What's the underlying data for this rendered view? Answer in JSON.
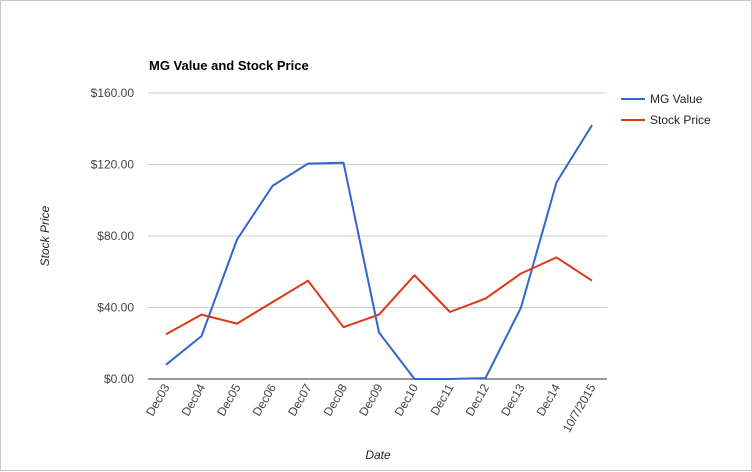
{
  "chart_data": {
    "type": "line",
    "title": "MG Value and Stock Price",
    "xlabel": "Date",
    "ylabel": "Stock Price",
    "ylim": [
      0,
      160
    ],
    "yticks": [
      "$0.00",
      "$40.00",
      "$80.00",
      "$120.00",
      "$160.00"
    ],
    "ytick_values": [
      0,
      40,
      80,
      120,
      160
    ],
    "grid": true,
    "legend_position": "right",
    "categories": [
      "Dec03",
      "Dec04",
      "Dec05",
      "Dec06",
      "Dec07",
      "Dec08",
      "Dec09",
      "Dec10",
      "Dec11",
      "Dec12",
      "Dec13",
      "Dec14",
      "10/7/2015"
    ],
    "series": [
      {
        "name": "MG Value",
        "color": "#3366cc",
        "values": [
          8,
          24,
          78,
          108,
          120.5,
          121,
          26,
          0,
          0,
          0.5,
          40,
          110,
          142
        ]
      },
      {
        "name": "Stock Price",
        "color": "#dc3912",
        "values": [
          25,
          36,
          31,
          43,
          55,
          29,
          36,
          58,
          37.5,
          45,
          59,
          68,
          55
        ]
      }
    ]
  }
}
